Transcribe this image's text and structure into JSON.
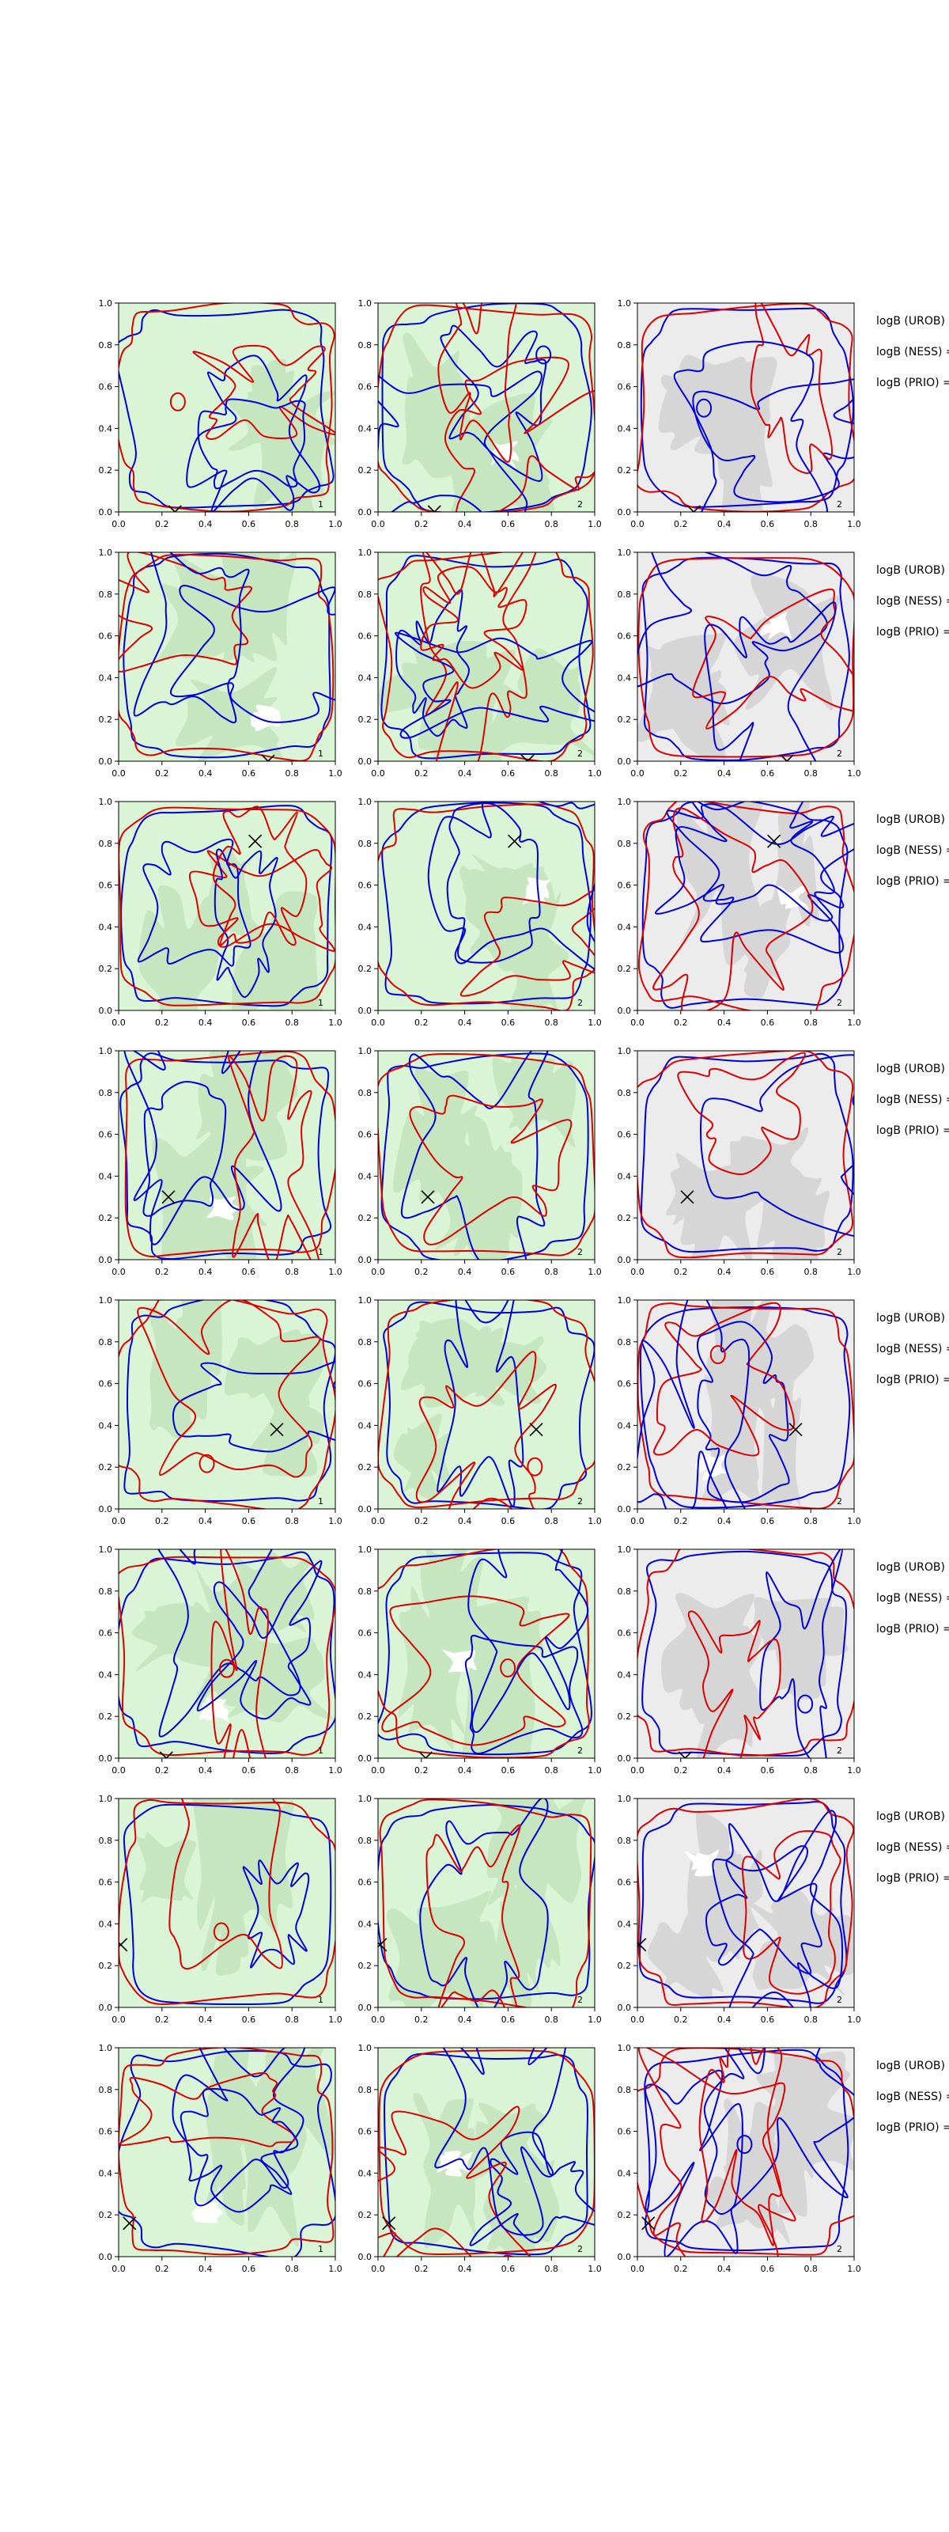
{
  "chart_data": {
    "type": "contour",
    "layout": {
      "rows": 8,
      "cols": 3
    },
    "xlim": [
      0,
      1
    ],
    "ylim": [
      0,
      1
    ],
    "xticks": [
      "0.0",
      "0.2",
      "0.4",
      "0.6",
      "0.8",
      "1.0"
    ],
    "yticks": [
      "0.0",
      "0.2",
      "0.4",
      "0.6",
      "0.8",
      "1.0"
    ],
    "grid": false,
    "colors": {
      "contour_a": "#0000dd",
      "contour_b": "#dd0000",
      "fill_green_light": "#d9f5d5",
      "fill_green_dark": "#c6e6c0",
      "fill_gray_light": "#ececec",
      "fill_gray_dark": "#d6d6d6",
      "marker": "#000000"
    },
    "panel_fill": [
      "green",
      "green",
      "gray"
    ],
    "panel_numbers": [
      "1",
      "2",
      "2"
    ],
    "side_labels": [
      "logB (UROB) =",
      "logB (NESS) =",
      "logB (PRIO) ="
    ],
    "rows": [
      {
        "marker": {
          "x": 0.26,
          "y": 0.0
        }
      },
      {
        "marker": {
          "x": 0.69,
          "y": 0.0
        }
      },
      {
        "marker": {
          "x": 0.63,
          "y": 0.81
        }
      },
      {
        "marker": {
          "x": 0.23,
          "y": 0.3
        }
      },
      {
        "marker": {
          "x": 0.73,
          "y": 0.38
        }
      },
      {
        "marker": {
          "x": 0.22,
          "y": 0.0
        }
      },
      {
        "marker": {
          "x": 0.01,
          "y": 0.3
        }
      },
      {
        "marker": {
          "x": 0.05,
          "y": 0.16
        }
      }
    ]
  }
}
